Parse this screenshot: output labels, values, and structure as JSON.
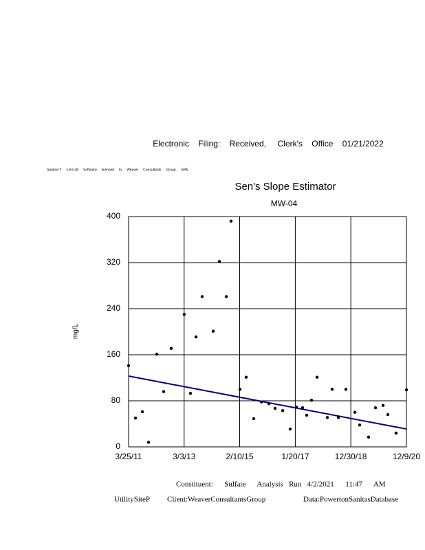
{
  "header": {
    "filing": "Electronic    Filing:    Received,     Clerk's    Office    01/21/2022",
    "license": "Sanitas™     v.9.6.28     Software     licensed     to     Weaver     Consultants     Group.     EPA"
  },
  "chart_data": {
    "type": "scatter",
    "title": "Sen's Slope Estimator",
    "subtitle": "MW-04",
    "y_label": "mg/L",
    "x": [
      "3/25/11",
      "6/21/11",
      "9/17/11",
      "12/5/11",
      "3/19/12",
      "6/15/12",
      "9/19/12",
      "3/4/13",
      "5/23/13",
      "8/1/13",
      "10/19/13",
      "3/9/14",
      "5/27/14",
      "8/23/14",
      "10/23/14",
      "2/14/15",
      "5/4/15",
      "8/9/15",
      "11/14/15",
      "2/18/16",
      "5/7/16",
      "8/12/16",
      "11/16/16",
      "2/3/17",
      "4/23/17",
      "6/15/17",
      "8/15/17",
      "10/25/17",
      "3/5/18",
      "5/6/18",
      "7/24/18",
      "10/28/18",
      "2/20/19",
      "4/22/19",
      "8/14/19",
      "11/10/19",
      "2/15/20",
      "4/16/20",
      "7/30/20",
      "12/9/20"
    ],
    "values": [
      141,
      50,
      61,
      8,
      161,
      96,
      171,
      230,
      93,
      191,
      261,
      201,
      322,
      261,
      392,
      100,
      121,
      49,
      78,
      75,
      67,
      63,
      31,
      69,
      68,
      55,
      81,
      121,
      51,
      100,
      51,
      100,
      60,
      38,
      17,
      68,
      72,
      56,
      24,
      99
    ],
    "color": "#000000",
    "trend_line": {
      "x": [
        "3/25/11",
        "12/9/20"
      ],
      "values": [
        123,
        31
      ],
      "color": "#000080"
    },
    "xlim": [
      "3/25/11",
      "12/9/20"
    ],
    "xticks": [
      "3/25/11",
      "3/3/13",
      "2/10/15",
      "1/20/17",
      "12/30/18",
      "12/9/20"
    ],
    "ylim": [
      0,
      400
    ],
    "yticks": [
      0,
      80,
      160,
      240,
      320,
      400
    ],
    "grid": true
  },
  "footer": {
    "run": "Constituent:      Sulfate      Analysis   Run   4/2/2021      11:47      AM",
    "site": "UtilitySiteP",
    "client": "Client:WeaverConsultantsGroup",
    "database": "Data:PowertonSanitasDatabase"
  }
}
